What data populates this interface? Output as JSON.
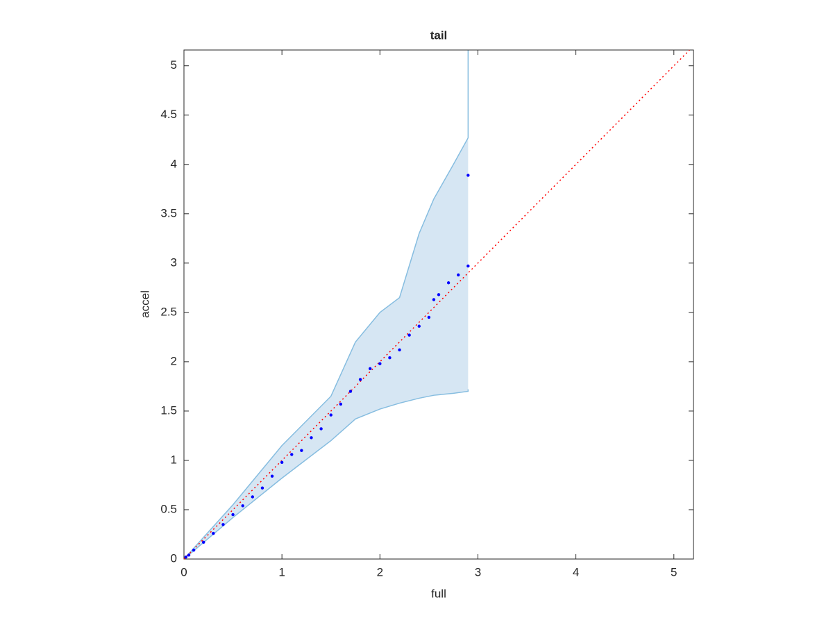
{
  "chart_data": {
    "type": "scatter",
    "title": "tail",
    "x_label": "full",
    "y_label": "accel",
    "xlim": [
      0,
      5.2
    ],
    "ylim": [
      0,
      5.16
    ],
    "xticks": [
      0,
      1,
      2,
      3,
      4,
      5
    ],
    "yticks": [
      0,
      0.5,
      1,
      1.5,
      2,
      2.5,
      3,
      3.5,
      4,
      4.5,
      5
    ],
    "band": {
      "color": "#d6e6f3",
      "edge_color": "#86bde0",
      "x": [
        0,
        0.5,
        1,
        1.5,
        1.75,
        2.0,
        2.2,
        2.4,
        2.55,
        2.75,
        2.9,
        2.9
      ],
      "upper": [
        0,
        0.55,
        1.15,
        1.65,
        2.2,
        2.5,
        2.65,
        3.3,
        3.65,
        4.0,
        4.27,
        5.16
      ],
      "lower": [
        0,
        0.42,
        0.82,
        1.2,
        1.42,
        1.52,
        1.58,
        1.63,
        1.66,
        1.68,
        1.7,
        1.72
      ]
    },
    "reference": {
      "color": "#ff0000",
      "x": [
        0,
        5.16
      ],
      "y": [
        0,
        5.16
      ]
    },
    "points": {
      "color": "#0000ff",
      "x": [
        0.02,
        0.05,
        0.1,
        0.2,
        0.3,
        0.4,
        0.5,
        0.6,
        0.7,
        0.8,
        0.9,
        1.0,
        1.1,
        1.2,
        1.3,
        1.4,
        1.5,
        1.6,
        1.7,
        1.8,
        1.9,
        2.0,
        2.1,
        2.2,
        2.3,
        2.4,
        2.5,
        2.55,
        2.6,
        2.7,
        2.8,
        2.9,
        2.9
      ],
      "y": [
        0.02,
        0.04,
        0.09,
        0.17,
        0.26,
        0.35,
        0.45,
        0.54,
        0.63,
        0.72,
        0.84,
        0.98,
        1.06,
        1.1,
        1.23,
        1.32,
        1.46,
        1.57,
        1.7,
        1.82,
        1.93,
        1.98,
        2.04,
        2.12,
        2.27,
        2.36,
        2.45,
        2.63,
        2.68,
        2.8,
        2.88,
        2.97,
        3.89
      ]
    }
  }
}
